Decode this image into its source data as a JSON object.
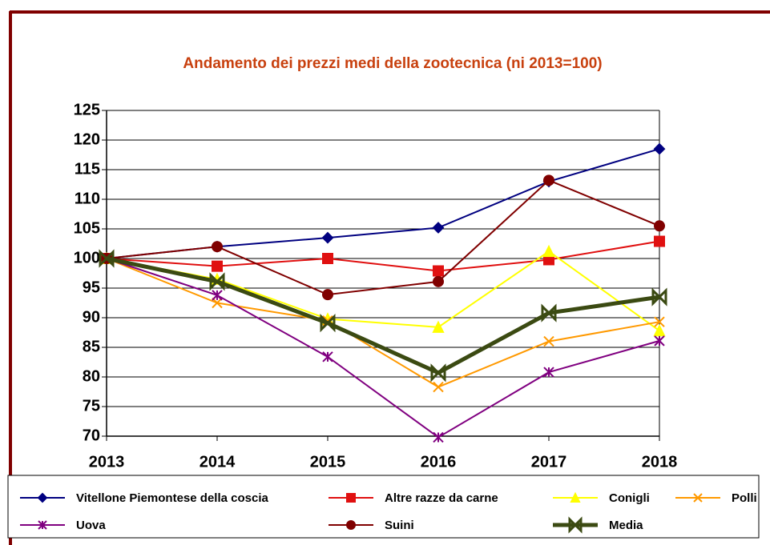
{
  "chart_data": {
    "type": "line",
    "title": "Andamento dei prezzi medi della zootecnica  (ni 2013=100)",
    "categories": [
      "2013",
      "2014",
      "2015",
      "2016",
      "2017",
      "2018"
    ],
    "series": [
      {
        "name": "Vitellone Piemontese della coscia",
        "color": "#000080",
        "marker": "diamond",
        "values": [
          100,
          102,
          103.5,
          105.2,
          113,
          118.5
        ]
      },
      {
        "name": "Altre razze da carne",
        "color": "#e01010",
        "marker": "square",
        "values": [
          100,
          98.7,
          100,
          97.9,
          99.8,
          102.9
        ]
      },
      {
        "name": "Conigli",
        "color": "#ffff00",
        "marker": "triangle",
        "values": [
          100,
          96.5,
          89.8,
          88.4,
          101.2,
          87.8
        ]
      },
      {
        "name": "Polli",
        "color": "#ff9900",
        "marker": "x",
        "values": [
          100,
          92.5,
          89.5,
          78.3,
          86,
          89.3
        ]
      },
      {
        "name": "Uova",
        "color": "#800080",
        "marker": "star",
        "values": [
          100,
          93.8,
          83.4,
          69.8,
          80.8,
          86.1
        ]
      },
      {
        "name": "Suini",
        "color": "#800000",
        "marker": "circle",
        "values": [
          100,
          102,
          93.9,
          96.1,
          113.2,
          105.5
        ]
      },
      {
        "name": "Media",
        "color": "#3b4a12",
        "marker": "bowtie",
        "values": [
          100,
          96.1,
          89.1,
          80.7,
          90.8,
          93.5
        ]
      }
    ],
    "ylim": [
      70,
      125
    ],
    "yticks": [
      70,
      75,
      80,
      85,
      90,
      95,
      100,
      105,
      110,
      115,
      120,
      125
    ],
    "grid": true
  }
}
